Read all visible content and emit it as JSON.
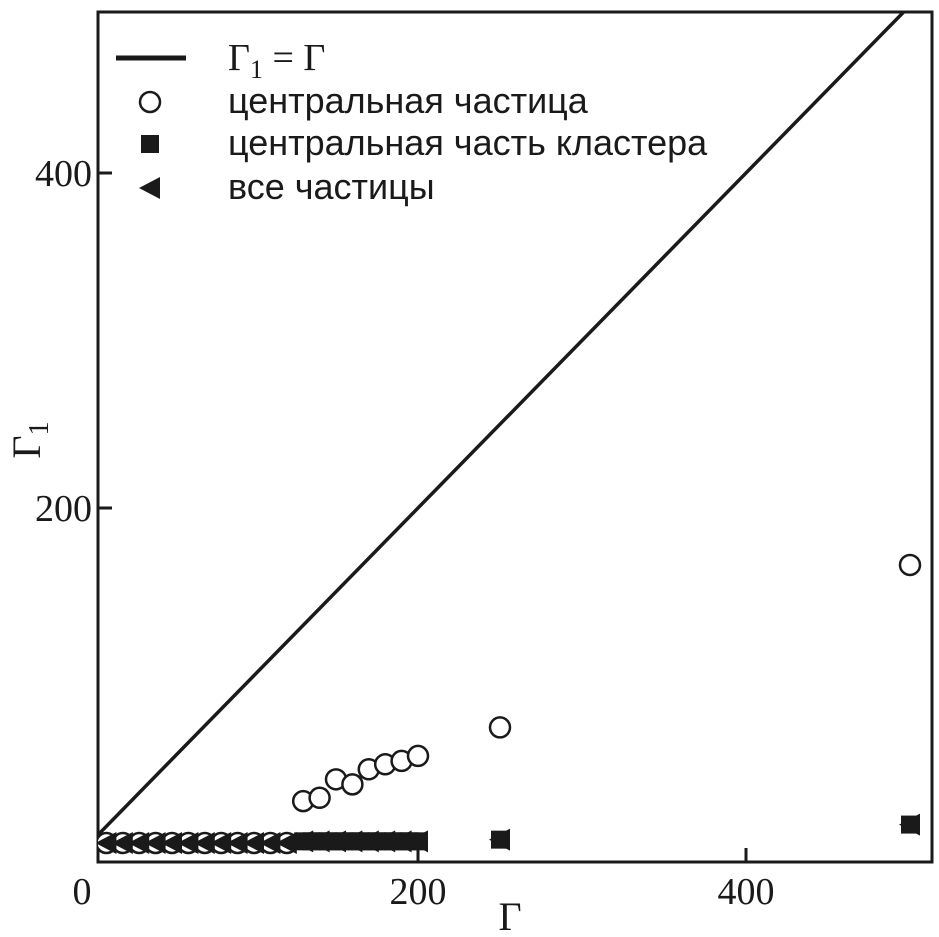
{
  "chart_data": {
    "type": "scatter",
    "xlabel": "Γ",
    "ylabel": "Γ1",
    "xlim": [
      0,
      515
    ],
    "ylim": [
      0,
      505
    ],
    "x_ticks": [
      0,
      200,
      400
    ],
    "y_ticks": [
      200,
      400
    ],
    "x_tick_labels": [
      "0",
      "200",
      "400"
    ],
    "y_tick_labels": [
      "200",
      "400"
    ],
    "grid": false,
    "legend_position": "top-left",
    "colors": {
      "ink": "#1a1a1a",
      "background": "#ffffff"
    },
    "series": [
      {
        "name": "Γ1 = Γ",
        "legend_label": "Γ1 = Γ",
        "marker": "line",
        "x": [
          0,
          500
        ],
        "y": [
          0,
          500
        ]
      },
      {
        "name": "центральная частица",
        "marker": "open-circle",
        "x": [
          10,
          20,
          30,
          40,
          50,
          60,
          70,
          80,
          90,
          100,
          110,
          120,
          130,
          140,
          150,
          160,
          170,
          180,
          190,
          200,
          250,
          500
        ],
        "y": [
          0,
          0,
          0,
          0,
          0,
          0,
          0,
          0,
          0,
          0,
          0,
          0,
          25,
          27,
          38,
          35,
          44,
          47,
          49,
          52,
          69,
          166
        ]
      },
      {
        "name": "центральная часть кластера",
        "marker": "filled-square",
        "x": [
          130,
          135,
          140,
          145,
          150,
          155,
          160,
          165,
          170,
          175,
          180,
          185,
          190,
          195,
          200,
          250,
          500
        ],
        "y": [
          1,
          1,
          1,
          1,
          1,
          1,
          1,
          1,
          1,
          1,
          1,
          1,
          1,
          1,
          1,
          2,
          11
        ]
      },
      {
        "name": "все частицы",
        "marker": "filled-left-triangle",
        "x": [
          10,
          20,
          30,
          40,
          50,
          60,
          70,
          80,
          90,
          100,
          110,
          120,
          130,
          140,
          150,
          160,
          170,
          180,
          190,
          200,
          250,
          500
        ],
        "y": [
          0,
          0,
          0,
          0,
          0,
          0,
          0,
          0,
          0,
          0,
          0,
          0,
          1,
          1,
          1,
          1,
          1,
          1,
          1,
          1,
          2,
          11
        ]
      }
    ]
  }
}
